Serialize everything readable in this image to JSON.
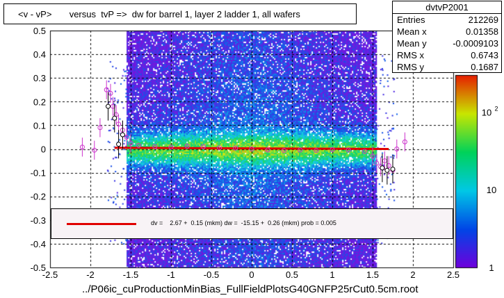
{
  "title": "<v - vP>       versus  tvP =>  dw for barrel 1, layer 2 ladder 1, all wafers",
  "stats": {
    "name": "dvtvP2001",
    "rows": [
      {
        "label": "Entries",
        "value": "212269"
      },
      {
        "label": "Mean x",
        "value": "0.01358"
      },
      {
        "label": "Mean y",
        "value": "-0.0009103"
      },
      {
        "label": "RMS x",
        "value": "0.6743"
      },
      {
        "label": "RMS y",
        "value": "0.1687"
      }
    ]
  },
  "fit_text": "dv =    2.67 +  0.15 (mkm) dw =  -15.15 +  0.26 (mkm) prob = 0.005",
  "xlabel": "../P06ic_cuProductionMinBias_FullFieldPlotsG40GNFP25rCut0.5cm.root",
  "colors": {
    "fit_line": "#e00000",
    "profile": "#cc33cc",
    "fit_box": "#f8f3f6"
  },
  "chart_data": {
    "type": "heatmap",
    "xlim": [
      -2.5,
      2.5
    ],
    "ylim": [
      -0.5,
      0.5
    ],
    "x_ticks": [
      "-2.5",
      "-2",
      "-1.5",
      "-1",
      "-0.5",
      "0",
      "0.5",
      "1",
      "1.5",
      "2",
      "2.5"
    ],
    "y_ticks": [
      "-0.5",
      "-0.4",
      "-0.3",
      "-0.2",
      "-0.1",
      "0",
      "0.1",
      "0.2",
      "0.3",
      "0.4",
      "0.5"
    ],
    "colorbar_ticks": [
      "1",
      "10",
      "10^2"
    ],
    "colorbar_range": [
      1,
      300
    ],
    "log_z": true,
    "grid": true,
    "density_x_range": [
      -1.55,
      1.55
    ],
    "fit_line": {
      "x": [
        -1.7,
        1.7
      ],
      "y": [
        0.005,
        0.0
      ]
    },
    "profile_points": [
      {
        "x": -2.1,
        "y": 0.008
      },
      {
        "x": -1.95,
        "y": -0.005
      },
      {
        "x": -1.88,
        "y": 0.09
      },
      {
        "x": -1.8,
        "y": 0.25
      },
      {
        "x": -1.75,
        "y": 0.235
      },
      {
        "x": -1.72,
        "y": 0.18
      },
      {
        "x": -1.68,
        "y": 0.145
      },
      {
        "x": -1.65,
        "y": 0.105
      },
      {
        "x": -1.6,
        "y": 0.08
      },
      {
        "x": -1.55,
        "y": 0.05
      },
      {
        "x": -1.5,
        "y": 0.025
      },
      {
        "x": -1.4,
        "y": 0.015
      },
      {
        "x": -1.2,
        "y": 0.01
      },
      {
        "x": -1.0,
        "y": 0.008
      },
      {
        "x": -0.8,
        "y": 0.012
      },
      {
        "x": -0.6,
        "y": 0.01
      },
      {
        "x": -0.4,
        "y": 0.005
      },
      {
        "x": -0.2,
        "y": 0.004
      },
      {
        "x": 0.0,
        "y": 0.0
      },
      {
        "x": 0.2,
        "y": -0.004
      },
      {
        "x": 0.4,
        "y": -0.006
      },
      {
        "x": 0.6,
        "y": -0.004
      },
      {
        "x": 0.8,
        "y": -0.006
      },
      {
        "x": 1.0,
        "y": -0.003
      },
      {
        "x": 1.2,
        "y": -0.004
      },
      {
        "x": 1.4,
        "y": -0.01
      },
      {
        "x": 1.5,
        "y": -0.03
      },
      {
        "x": 1.55,
        "y": -0.06
      },
      {
        "x": 1.6,
        "y": -0.075
      },
      {
        "x": 1.65,
        "y": -0.05
      },
      {
        "x": 1.7,
        "y": -0.07
      },
      {
        "x": 1.75,
        "y": -0.09
      },
      {
        "x": 1.8,
        "y": 0.0
      },
      {
        "x": 1.9,
        "y": 0.03
      }
    ],
    "black_points": [
      {
        "x": -1.78,
        "y": 0.18
      },
      {
        "x": -1.7,
        "y": 0.13
      },
      {
        "x": -1.65,
        "y": 0.02
      },
      {
        "x": -1.6,
        "y": 0.06
      },
      {
        "x": 1.62,
        "y": -0.08
      },
      {
        "x": 1.68,
        "y": -0.09
      },
      {
        "x": 1.75,
        "y": -0.085
      }
    ]
  }
}
